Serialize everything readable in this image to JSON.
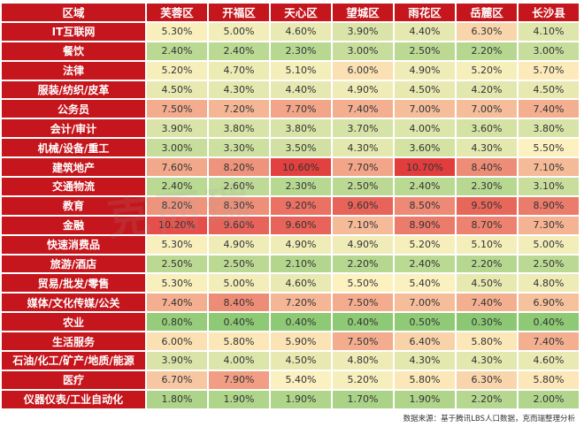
{
  "chart_data": {
    "type": "heatmap",
    "corner_label": "区域",
    "columns": [
      "芙蓉区",
      "开福区",
      "天心区",
      "望城区",
      "雨花区",
      "岳麓区",
      "长沙县"
    ],
    "rows": [
      {
        "label": "IT互联网",
        "values": [
          "5.30%",
          "5.00%",
          "4.60%",
          "3.90%",
          "4.40%",
          "6.30%",
          "4.10%"
        ]
      },
      {
        "label": "餐饮",
        "values": [
          "2.40%",
          "2.40%",
          "2.30%",
          "3.00%",
          "2.50%",
          "2.20%",
          "3.00%"
        ]
      },
      {
        "label": "法律",
        "values": [
          "5.20%",
          "4.70%",
          "5.10%",
          "6.00%",
          "4.90%",
          "5.20%",
          "5.70%"
        ]
      },
      {
        "label": "服装/纺织/皮革",
        "values": [
          "4.50%",
          "4.30%",
          "4.40%",
          "4.90%",
          "4.50%",
          "4.20%",
          "4.50%"
        ]
      },
      {
        "label": "公务员",
        "values": [
          "7.50%",
          "7.20%",
          "7.70%",
          "7.40%",
          "7.00%",
          "7.00%",
          "7.40%"
        ]
      },
      {
        "label": "会计/审计",
        "values": [
          "3.90%",
          "3.80%",
          "3.80%",
          "3.70%",
          "4.00%",
          "3.60%",
          "3.80%"
        ]
      },
      {
        "label": "机械/设备/重工",
        "values": [
          "3.00%",
          "3.30%",
          "3.50%",
          "4.30%",
          "3.60%",
          "4.30%",
          "5.50%"
        ]
      },
      {
        "label": "建筑地产",
        "values": [
          "7.60%",
          "8.20%",
          "10.60%",
          "7.70%",
          "10.70%",
          "8.40%",
          "7.10%"
        ]
      },
      {
        "label": "交通物流",
        "values": [
          "2.40%",
          "2.60%",
          "2.30%",
          "2.50%",
          "2.40%",
          "2.30%",
          "3.10%"
        ]
      },
      {
        "label": "教育",
        "values": [
          "8.20%",
          "8.30%",
          "9.20%",
          "9.60%",
          "8.50%",
          "9.50%",
          "8.90%"
        ]
      },
      {
        "label": "金融",
        "values": [
          "10.20%",
          "9.60%",
          "9.60%",
          "7.10%",
          "8.90%",
          "8.70%",
          "7.30%"
        ]
      },
      {
        "label": "快速消费品",
        "values": [
          "5.30%",
          "4.90%",
          "4.90%",
          "4.90%",
          "5.20%",
          "5.10%",
          "5.00%"
        ]
      },
      {
        "label": "旅游/酒店",
        "values": [
          "2.50%",
          "2.50%",
          "2.10%",
          "2.20%",
          "2.40%",
          "2.20%",
          "2.50%"
        ]
      },
      {
        "label": "贸易/批发/零售",
        "values": [
          "5.30%",
          "5.00%",
          "4.60%",
          "5.50%",
          "5.40%",
          "4.50%",
          "4.80%"
        ]
      },
      {
        "label": "媒体/文化传媒/公关",
        "values": [
          "7.40%",
          "8.40%",
          "7.20%",
          "7.50%",
          "7.00%",
          "7.40%",
          "6.90%"
        ]
      },
      {
        "label": "农业",
        "values": [
          "0.80%",
          "0.40%",
          "0.40%",
          "0.40%",
          "0.50%",
          "0.30%",
          "0.40%"
        ]
      },
      {
        "label": "生活服务",
        "values": [
          "6.00%",
          "5.80%",
          "5.90%",
          "7.50%",
          "6.40%",
          "5.80%",
          "7.40%"
        ]
      },
      {
        "label": "石油/化工/矿产/地质/能源",
        "values": [
          "3.90%",
          "4.00%",
          "4.50%",
          "4.80%",
          "4.30%",
          "4.30%",
          "4.60%"
        ]
      },
      {
        "label": "医疗",
        "values": [
          "6.70%",
          "7.90%",
          "5.40%",
          "5.20%",
          "5.80%",
          "6.30%",
          "5.80%"
        ]
      },
      {
        "label": "仪器仪表/工业自动化",
        "values": [
          "1.80%",
          "1.90%",
          "1.90%",
          "1.70%",
          "1.90%",
          "2.20%",
          "2.00%"
        ]
      }
    ],
    "source_note": "数据来源：基于腾讯LBS人口数据，克而瑞整理分析",
    "watermark": "克而瑞",
    "colors": {
      "header_bg": "#c4161c",
      "header_text": "#ffffff",
      "scale_low": "#8cc874",
      "scale_mid": "#fdf1c0",
      "scale_high": "#e23d3d"
    }
  }
}
